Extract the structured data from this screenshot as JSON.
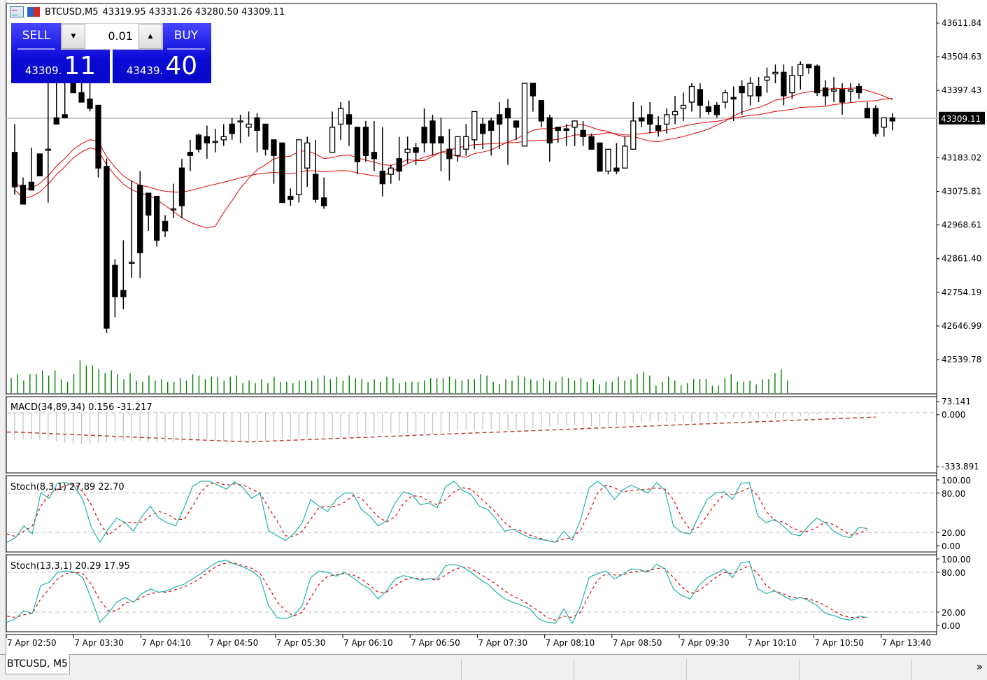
{
  "window": {
    "symbol": "BTCUSD,M5",
    "ohlc": "43319.95 43331.26 43280.50 43309.11"
  },
  "one_click": {
    "sell_label": "SELL",
    "buy_label": "BUY",
    "lot": "0.01",
    "sell_price_small": "43309.",
    "sell_price_big": "11",
    "buy_price_small": "43439.",
    "buy_price_big": "40",
    "colors": {
      "button": "#1010dd"
    }
  },
  "tabs": [
    {
      "label": "BTCUSD, M5",
      "active": true
    }
  ],
  "tab_more_label": "»",
  "chart_data": [
    {
      "type": "candlestick",
      "title": "BTCUSD,M5",
      "price_axis": {
        "ticks": [
          "43611.84",
          "43504.63",
          "43397.43",
          "43183.02",
          "43075.81",
          "42968.61",
          "42861.40",
          "42754.19",
          "42646.99",
          "42539.78"
        ],
        "ylim": [
          42460,
          43680
        ],
        "current_price": "43309.11"
      },
      "time_axis": {
        "ticks": [
          "7 Apr 02:50",
          "7 Apr 03:30",
          "7 Apr 04:10",
          "7 Apr 04:50",
          "7 Apr 05:30",
          "7 Apr 06:10",
          "7 Apr 06:50",
          "7 Apr 07:30",
          "7 Apr 08:10",
          "7 Apr 08:50",
          "7 Apr 09:30",
          "7 Apr 10:10",
          "7 Apr 10:50",
          "7 Apr 13:40"
        ]
      },
      "candles": [
        [
          43200,
          43290,
          43090,
          43065
        ],
        [
          43095,
          43120,
          43035,
          43070
        ],
        [
          43105,
          43210,
          43080,
          43215
        ],
        [
          43195,
          43165,
          43125,
          43140
        ],
        [
          43210,
          43460,
          43210,
          43040
        ],
        [
          43310,
          43470,
          43290,
          43300
        ],
        [
          43320,
          43450,
          43310,
          43440
        ],
        [
          43480,
          43530,
          43390,
          43420
        ],
        [
          43390,
          43470,
          43360,
          43480
        ],
        [
          43370,
          43480,
          43340,
          43330
        ],
        [
          43350,
          43330,
          43150,
          43120
        ],
        [
          43155,
          43180,
          42640,
          42625
        ],
        [
          42840,
          42860,
          42740,
          42675
        ],
        [
          42760,
          42920,
          42740,
          42700
        ],
        [
          42850,
          43110,
          42850,
          42800
        ],
        [
          43095,
          43140,
          42880,
          42800
        ],
        [
          43070,
          43040,
          43000,
          42950
        ],
        [
          43060,
          42960,
          42920,
          42900
        ],
        [
          42980,
          43000,
          42950,
          42930
        ],
        [
          43020,
          43100,
          43020,
          42990
        ],
        [
          43150,
          43180,
          43030,
          42990
        ],
        [
          43200,
          43240,
          43190,
          43140
        ],
        [
          43255,
          43260,
          43210,
          43200
        ],
        [
          43250,
          43285,
          43230,
          43180
        ],
        [
          43235,
          43275,
          43235,
          43200
        ],
        [
          43240,
          43290,
          43250,
          43220
        ],
        [
          43290,
          43310,
          43260,
          43240
        ],
        [
          43300,
          43320,
          43300,
          43230
        ],
        [
          43280,
          43330,
          43290,
          43250
        ],
        [
          43310,
          43325,
          43270,
          43200
        ],
        [
          43290,
          43230,
          43210,
          43190
        ],
        [
          43240,
          43220,
          43190,
          43100
        ],
        [
          43230,
          43150,
          43040,
          43040
        ],
        [
          43060,
          43085,
          43050,
          43030
        ],
        [
          43065,
          43155,
          43240,
          43040
        ],
        [
          43150,
          43250,
          43230,
          43090
        ],
        [
          43130,
          43240,
          43050,
          43040
        ],
        [
          43055,
          43120,
          43030,
          43020
        ],
        [
          43200,
          43330,
          43280,
          43200
        ],
        [
          43290,
          43360,
          43340,
          43240
        ],
        [
          43320,
          43365,
          43290,
          43220
        ],
        [
          43280,
          43280,
          43170,
          43130
        ],
        [
          43280,
          43300,
          43190,
          43170
        ],
        [
          43200,
          43300,
          43180,
          43140
        ],
        [
          43140,
          43280,
          43100,
          43060
        ],
        [
          43130,
          43160,
          43150,
          43100
        ],
        [
          43180,
          43250,
          43140,
          43110
        ],
        [
          43200,
          43250,
          43210,
          43165
        ],
        [
          43215,
          43230,
          43200,
          43160
        ],
        [
          43280,
          43340,
          43230,
          43200
        ],
        [
          43300,
          43320,
          43230,
          43190
        ],
        [
          43250,
          43310,
          43230,
          43140
        ],
        [
          43210,
          43275,
          43180,
          43110
        ],
        [
          43190,
          43240,
          43250,
          43170
        ],
        [
          43210,
          43290,
          43250,
          43190
        ],
        [
          43240,
          43290,
          43330,
          43210
        ],
        [
          43290,
          43310,
          43260,
          43210
        ],
        [
          43300,
          43310,
          43270,
          43190
        ],
        [
          43320,
          43360,
          43290,
          43210
        ],
        [
          43340,
          43370,
          43310,
          43160
        ],
        [
          43300,
          43300,
          43280,
          43240
        ],
        [
          43220,
          43420,
          43420,
          43220
        ],
        [
          43420,
          43400,
          43380,
          43330
        ],
        [
          43365,
          43340,
          43300,
          43280
        ],
        [
          43310,
          43320,
          43230,
          43170
        ],
        [
          43280,
          43280,
          43270,
          43230
        ],
        [
          43275,
          43290,
          43270,
          43220
        ],
        [
          43280,
          43260,
          43300,
          43220
        ],
        [
          43270,
          43300,
          43250,
          43220
        ],
        [
          43250,
          43260,
          43210,
          43210
        ],
        [
          43230,
          43200,
          43140,
          43140
        ],
        [
          43140,
          43200,
          43210,
          43130
        ],
        [
          43150,
          43230,
          43140,
          43130
        ],
        [
          43150,
          43250,
          43220,
          43150
        ],
        [
          43210,
          43360,
          43300,
          43250
        ],
        [
          43310,
          43350,
          43300,
          43280
        ],
        [
          43320,
          43360,
          43290,
          43260
        ],
        [
          43285,
          43315,
          43270,
          43250
        ],
        [
          43290,
          43340,
          43320,
          43260
        ],
        [
          43320,
          43380,
          43330,
          43290
        ],
        [
          43340,
          43390,
          43350,
          43300
        ],
        [
          43360,
          43420,
          43410,
          43330
        ],
        [
          43400,
          43420,
          43350,
          43310
        ],
        [
          43345,
          43365,
          43330,
          43320
        ],
        [
          43350,
          43360,
          43320,
          43310
        ],
        [
          43360,
          43400,
          43390,
          43340
        ],
        [
          43375,
          43410,
          43370,
          43300
        ],
        [
          43410,
          43430,
          43390,
          43320
        ],
        [
          43380,
          43440,
          43420,
          43350
        ],
        [
          43410,
          43440,
          43380,
          43360
        ],
        [
          43430,
          43470,
          43440,
          43390
        ],
        [
          43450,
          43480,
          43455,
          43420
        ],
        [
          43455,
          43480,
          43380,
          43350
        ],
        [
          43390,
          43475,
          43445,
          43370
        ],
        [
          43445,
          43490,
          43480,
          43400
        ],
        [
          43480,
          43480,
          43470,
          43450
        ],
        [
          43475,
          43480,
          43390,
          43380
        ],
        [
          43405,
          43430,
          43380,
          43350
        ],
        [
          43395,
          43440,
          43400,
          43360
        ],
        [
          43400,
          43420,
          43360,
          43320
        ],
        [
          43395,
          43420,
          43400,
          43360
        ],
        [
          43410,
          43420,
          43390,
          43370
        ],
        [
          43340,
          43360,
          43310,
          43310
        ],
        [
          43340,
          43350,
          43260,
          43250
        ],
        [
          43280,
          43310,
          43310,
          43250
        ],
        [
          43310,
          43325,
          43300,
          43270
        ]
      ],
      "ma_series": [
        {
          "name": "MA fast",
          "color": "#e00000"
        },
        {
          "name": "MA slow",
          "color": "#e00000"
        }
      ],
      "volume": [
        12,
        15,
        10,
        15,
        15,
        18,
        14,
        18,
        11,
        9,
        15,
        26,
        22,
        22,
        19,
        16,
        18,
        15,
        11,
        16,
        10,
        9,
        14,
        10,
        11,
        9,
        9,
        12,
        10,
        15,
        14,
        11,
        13,
        13,
        10,
        13,
        14,
        8,
        10,
        8,
        11,
        8,
        13,
        9,
        9,
        8,
        10,
        10,
        10,
        12,
        14,
        11,
        13,
        10,
        14,
        12,
        11,
        9,
        11,
        9,
        13,
        12,
        8,
        9,
        9,
        9,
        10,
        12,
        12,
        12,
        13,
        11,
        10,
        11,
        11,
        15,
        14,
        9,
        7,
        11,
        10,
        14,
        13,
        11,
        10,
        12,
        10,
        9,
        13,
        12,
        10,
        12,
        9,
        11,
        7,
        9,
        9,
        13,
        10,
        11,
        15,
        17,
        14,
        6,
        9,
        13,
        10,
        6,
        8,
        11,
        11,
        11,
        6,
        6,
        12,
        15,
        9,
        9,
        10,
        7,
        11,
        11,
        16,
        19,
        10
      ],
      "volume_color": "#008000"
    },
    {
      "type": "bar+line",
      "title": "MACD(34,89,34) 0.156 -31.217",
      "ylim": [
        -333.891,
        73.141
      ],
      "ticks": [
        "73.141",
        "0.000",
        "-333.891"
      ],
      "histogram_color": "#c0c0c0",
      "signal_color": "#c04040"
    },
    {
      "type": "line",
      "title": "Stoch(8,3,1) 27.89 22.70",
      "ylim": [
        0,
        100
      ],
      "ticks": [
        "100.00",
        "80.00",
        "20.00",
        "0.00"
      ],
      "levels": [
        80,
        20
      ],
      "main": [
        5,
        12,
        30,
        18,
        80,
        72,
        95,
        96,
        90,
        70,
        28,
        5,
        25,
        42,
        35,
        22,
        45,
        60,
        42,
        35,
        30,
        58,
        90,
        98,
        98,
        92,
        86,
        97,
        88,
        72,
        80,
        23,
        15,
        8,
        18,
        35,
        70,
        60,
        52,
        70,
        80,
        80,
        55,
        45,
        30,
        38,
        65,
        82,
        78,
        62,
        65,
        58,
        90,
        98,
        84,
        78,
        60,
        55,
        40,
        22,
        25,
        18,
        12,
        10,
        8,
        5,
        22,
        8,
        40,
        88,
        98,
        88,
        70,
        85,
        92,
        86,
        80,
        96,
        84,
        30,
        20,
        18,
        45,
        70,
        80,
        82,
        70,
        95,
        96,
        45,
        35,
        40,
        30,
        18,
        15,
        30,
        42,
        35,
        22,
        15,
        12,
        28,
        26
      ],
      "signal": [
        18,
        14,
        22,
        30,
        60,
        78,
        86,
        92,
        94,
        82,
        62,
        34,
        16,
        26,
        36,
        35,
        36,
        46,
        52,
        48,
        40,
        40,
        60,
        82,
        94,
        96,
        92,
        94,
        92,
        86,
        80,
        58,
        38,
        15,
        14,
        22,
        40,
        58,
        60,
        60,
        66,
        76,
        72,
        58,
        44,
        36,
        44,
        64,
        76,
        75,
        68,
        62,
        70,
        82,
        88,
        86,
        74,
        62,
        50,
        35,
        25,
        22,
        16,
        12,
        8,
        6,
        10,
        12,
        24,
        50,
        80,
        92,
        88,
        82,
        84,
        85,
        86,
        88,
        86,
        70,
        42,
        24,
        28,
        46,
        64,
        78,
        78,
        82,
        88,
        76,
        52,
        38,
        36,
        28,
        22,
        22,
        28,
        36,
        32,
        24,
        16,
        19,
        24
      ]
    },
    {
      "type": "line",
      "title": "Stoch(13,3,1) 20.29 17.95",
      "ylim": [
        0,
        100
      ],
      "ticks": [
        "100.00",
        "80.00",
        "20.00",
        "0.00"
      ],
      "levels": [
        80,
        20
      ],
      "main": [
        5,
        10,
        22,
        18,
        60,
        65,
        80,
        82,
        80,
        72,
        40,
        5,
        18,
        35,
        42,
        35,
        48,
        55,
        50,
        52,
        58,
        62,
        70,
        78,
        88,
        96,
        98,
        92,
        88,
        82,
        72,
        30,
        12,
        10,
        15,
        30,
        72,
        82,
        80,
        74,
        80,
        72,
        62,
        55,
        40,
        52,
        70,
        75,
        72,
        68,
        70,
        70,
        90,
        92,
        88,
        80,
        70,
        62,
        50,
        40,
        35,
        30,
        25,
        10,
        5,
        3,
        25,
        3,
        30,
        72,
        78,
        82,
        70,
        77,
        85,
        84,
        80,
        92,
        85,
        55,
        45,
        40,
        60,
        72,
        78,
        85,
        72,
        94,
        96,
        55,
        48,
        52,
        45,
        38,
        42,
        38,
        30,
        18,
        15,
        10,
        8,
        14,
        12
      ],
      "signal": [
        14,
        12,
        16,
        18,
        40,
        55,
        70,
        78,
        80,
        78,
        62,
        38,
        22,
        22,
        34,
        36,
        42,
        48,
        50,
        50,
        54,
        58,
        64,
        72,
        82,
        90,
        94,
        94,
        90,
        86,
        78,
        58,
        36,
        22,
        14,
        20,
        42,
        62,
        74,
        76,
        78,
        76,
        70,
        60,
        50,
        50,
        60,
        68,
        72,
        70,
        70,
        68,
        76,
        84,
        88,
        86,
        78,
        70,
        62,
        52,
        44,
        38,
        30,
        22,
        12,
        8,
        14,
        12,
        20,
        46,
        68,
        78,
        76,
        76,
        80,
        82,
        82,
        86,
        86,
        72,
        58,
        48,
        52,
        62,
        72,
        80,
        78,
        84,
        90,
        78,
        60,
        52,
        48,
        42,
        42,
        40,
        36,
        30,
        22,
        15,
        12,
        12,
        12
      ]
    }
  ]
}
